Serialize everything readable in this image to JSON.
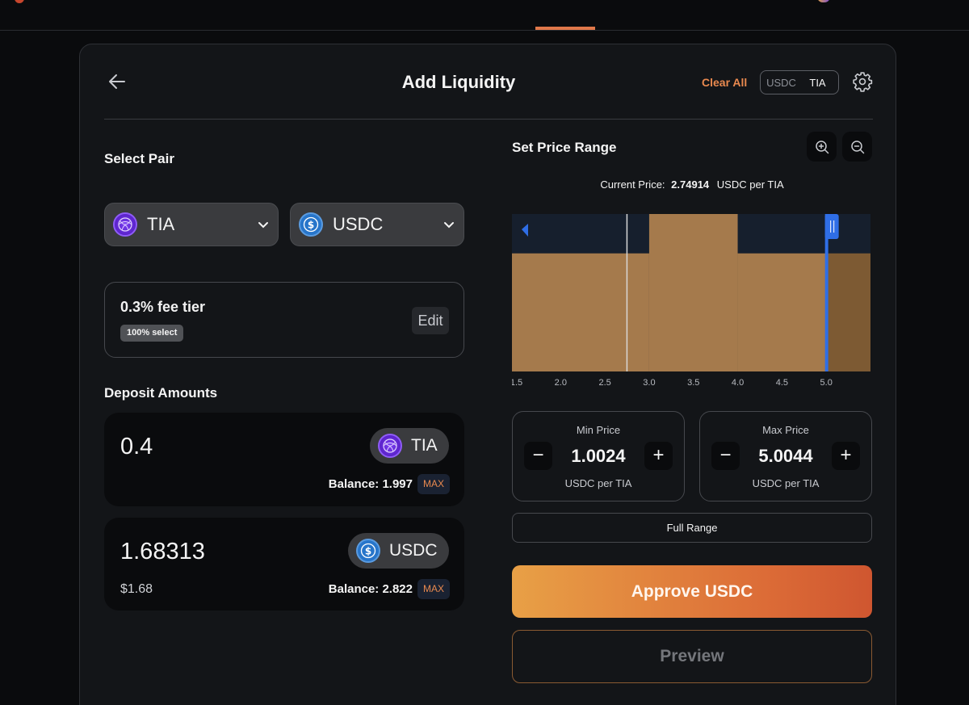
{
  "header": {
    "title": "Add Liquidity",
    "clear_all": "Clear All",
    "toggle": {
      "option_a": "USDC",
      "option_b": "TIA",
      "selected": "TIA"
    }
  },
  "select_pair": {
    "label": "Select Pair",
    "token_a": {
      "symbol": "TIA",
      "icon": "tia-token-icon"
    },
    "token_b": {
      "symbol": "USDC",
      "icon": "usdc-token-icon"
    }
  },
  "fee_tier": {
    "title": "0.3% fee tier",
    "badge": "100% select",
    "edit_label": "Edit"
  },
  "deposit": {
    "label": "Deposit Amounts",
    "token_a": {
      "amount": "0.4",
      "symbol": "TIA",
      "balance_label": "Balance: 1.997",
      "max_label": "MAX"
    },
    "token_b": {
      "amount": "1.68313",
      "usd_value": "$1.68",
      "symbol": "USDC",
      "balance_label": "Balance: 2.822",
      "max_label": "MAX"
    }
  },
  "price_range": {
    "label": "Set Price Range",
    "current_price_label": "Current Price:",
    "current_price_value": "2.74914",
    "current_price_unit": "USDC per TIA",
    "min": {
      "label": "Min Price",
      "value": "1.0024",
      "unit": "USDC per TIA",
      "minus": "−",
      "plus": "+"
    },
    "max": {
      "label": "Max Price",
      "value": "5.0044",
      "unit": "USDC per TIA",
      "minus": "−",
      "plus": "+"
    },
    "full_range_label": "Full Range"
  },
  "chart_data": {
    "type": "area",
    "x_ticks": [
      "1.5",
      "2.0",
      "2.5",
      "3.0",
      "3.5",
      "4.0",
      "4.5",
      "5.0"
    ],
    "x_range": [
      1.45,
      5.5
    ],
    "liquidity_steps": [
      {
        "from": 1.45,
        "to": 3.0,
        "level": 0.75
      },
      {
        "from": 3.0,
        "to": 4.0,
        "level": 1.0
      },
      {
        "from": 4.0,
        "to": 5.0,
        "level": 0.75
      },
      {
        "from": 5.0,
        "to": 5.5,
        "level": 0.75
      }
    ],
    "current_price": 2.74914,
    "selected_min": 1.0024,
    "selected_max": 5.0044,
    "colors": {
      "in_range": "#a57a4c",
      "out_of_range": "#7d5a33",
      "background": "#161f2d",
      "handle": "#2f6ee6",
      "current_line": "#d8d8d8"
    }
  },
  "actions": {
    "approve_label": "Approve USDC",
    "preview_label": "Preview"
  }
}
